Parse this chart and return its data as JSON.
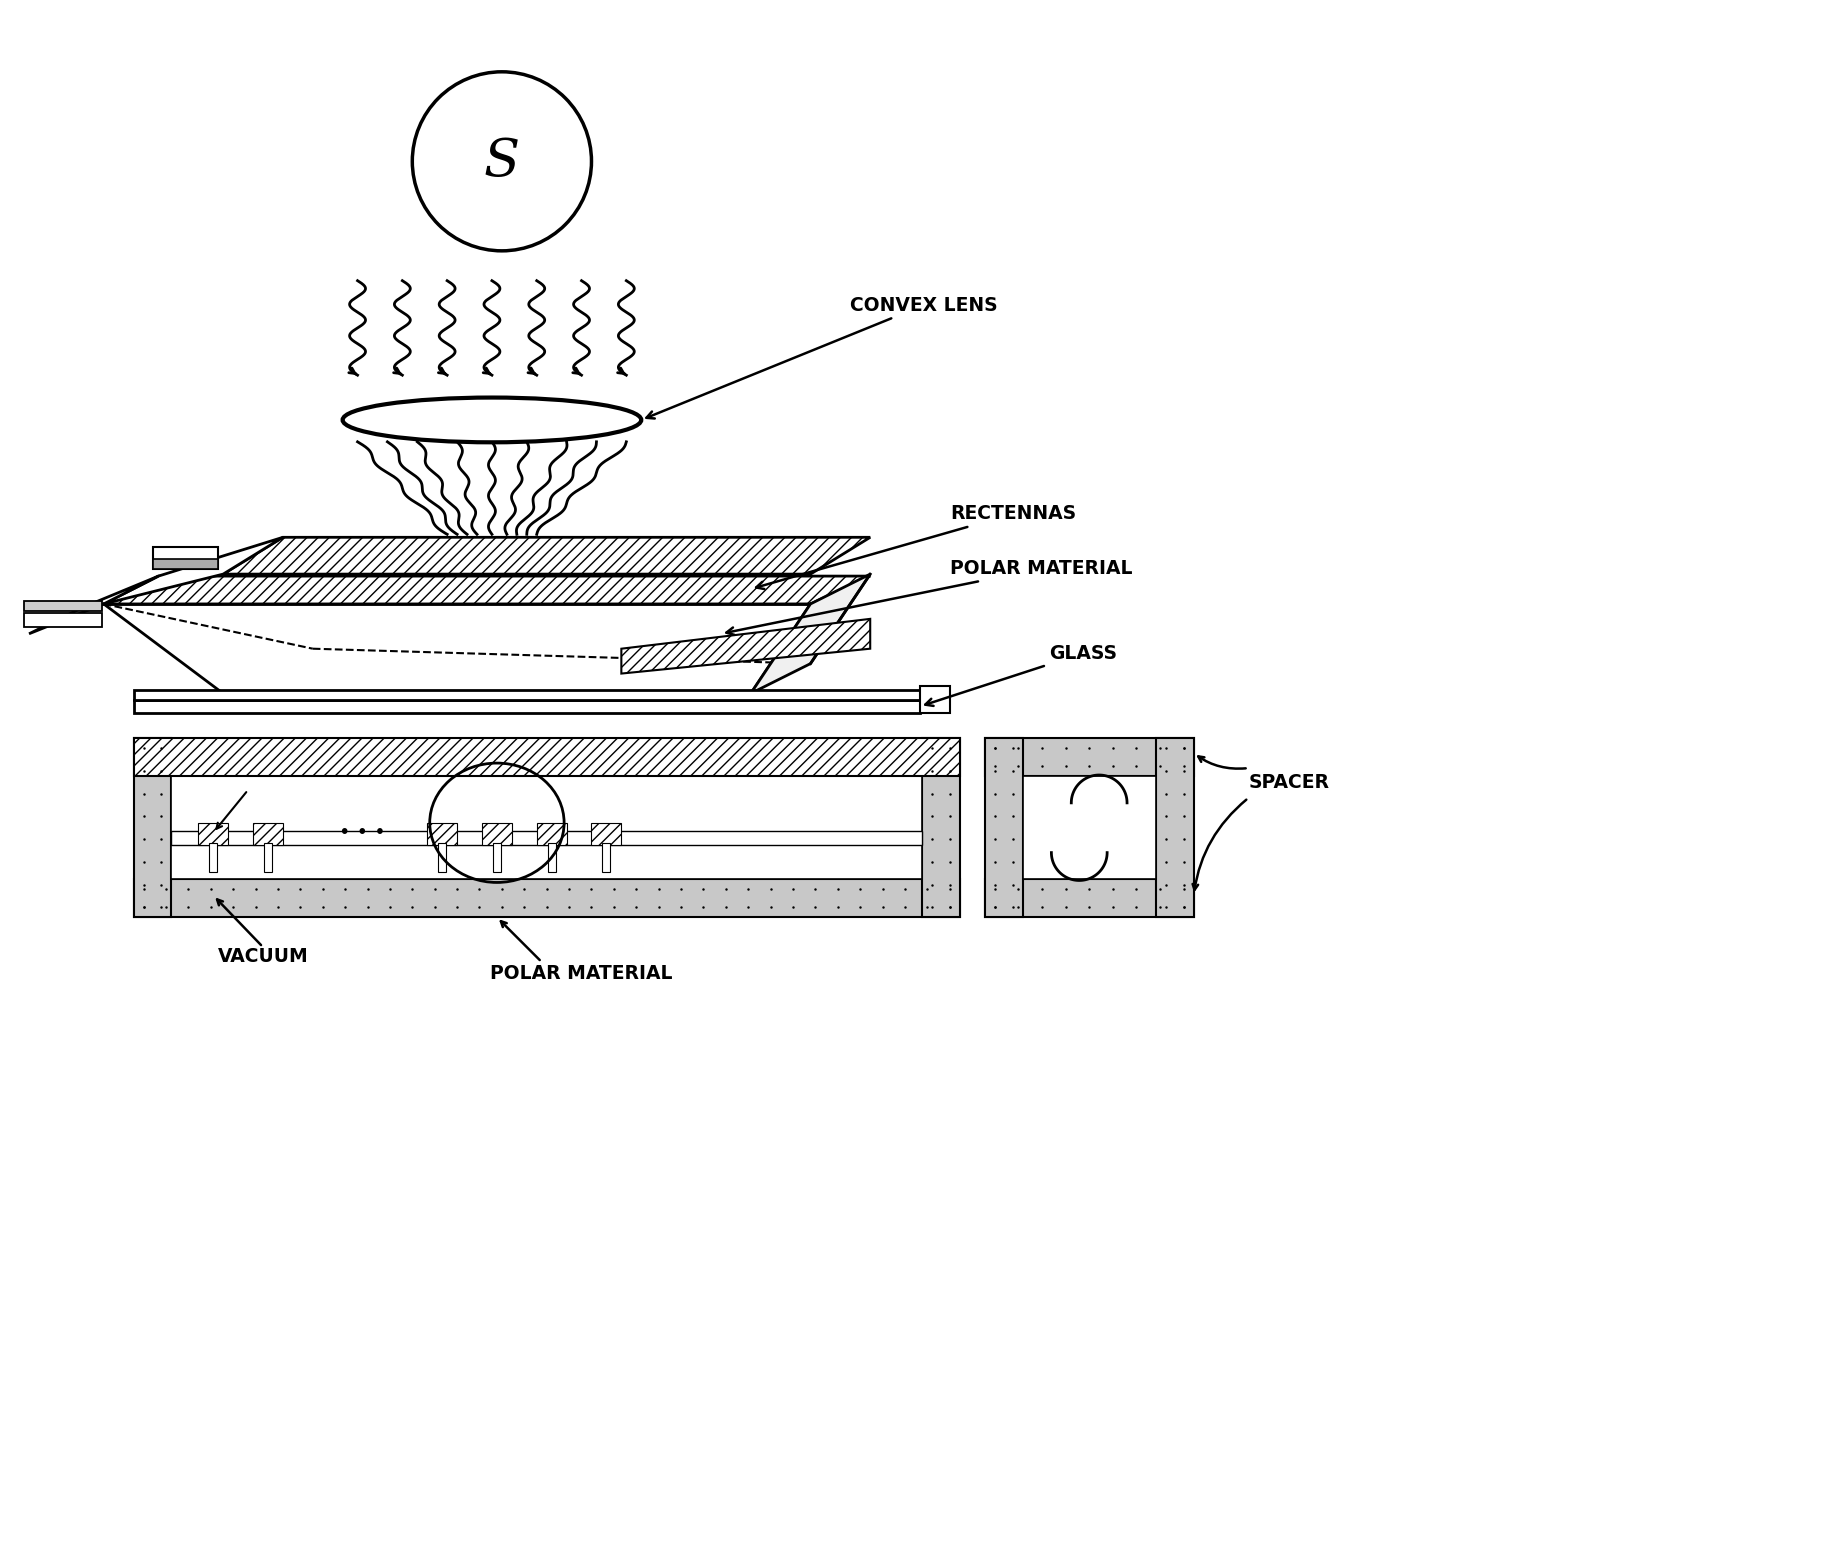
{
  "bg_color": "#ffffff",
  "line_color": "#000000",
  "labels": {
    "convex_lens": "CONVEX LENS",
    "rectennas": "RECTENNAS",
    "polar_material_top": "POLAR MATERIAL",
    "glass": "GLASS",
    "vacuum": "VACUUM",
    "polar_material_bottom": "POLAR MATERIAL",
    "spacer": "SPACER",
    "source": "S"
  },
  "figsize": [
    18.34,
    15.58
  ],
  "dpi": 100
}
